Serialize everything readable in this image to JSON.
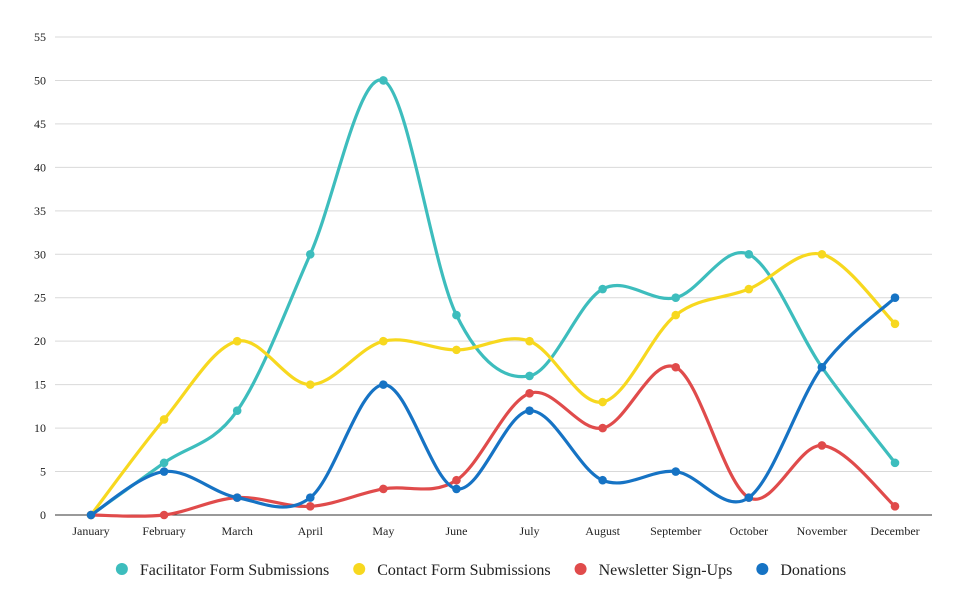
{
  "chart_data": {
    "type": "line",
    "smooth": true,
    "categories": [
      "January",
      "February",
      "March",
      "April",
      "May",
      "June",
      "July",
      "August",
      "September",
      "October",
      "November",
      "December"
    ],
    "ylim": [
      0,
      55
    ],
    "yticks": [
      0,
      5,
      10,
      15,
      20,
      25,
      30,
      35,
      40,
      45,
      50,
      55
    ],
    "grid": true,
    "legend_position": "bottom",
    "series": [
      {
        "name": "Facilitator Form Submissions",
        "color": "#3dbdbd",
        "values": [
          0,
          6,
          12,
          30,
          50,
          23,
          16,
          26,
          25,
          30,
          17,
          6
        ]
      },
      {
        "name": "Contact Form Submissions",
        "color": "#f7d81f",
        "values": [
          0,
          11,
          20,
          15,
          20,
          19,
          20,
          13,
          23,
          26,
          30,
          22
        ]
      },
      {
        "name": "Newsletter Sign-Ups",
        "color": "#e04b4b",
        "values": [
          0,
          0,
          2,
          1,
          3,
          4,
          14,
          10,
          17,
          2,
          8,
          1
        ]
      },
      {
        "name": "Donations",
        "color": "#1673c4",
        "values": [
          0,
          5,
          2,
          2,
          15,
          3,
          12,
          4,
          5,
          2,
          17,
          25
        ]
      }
    ]
  }
}
